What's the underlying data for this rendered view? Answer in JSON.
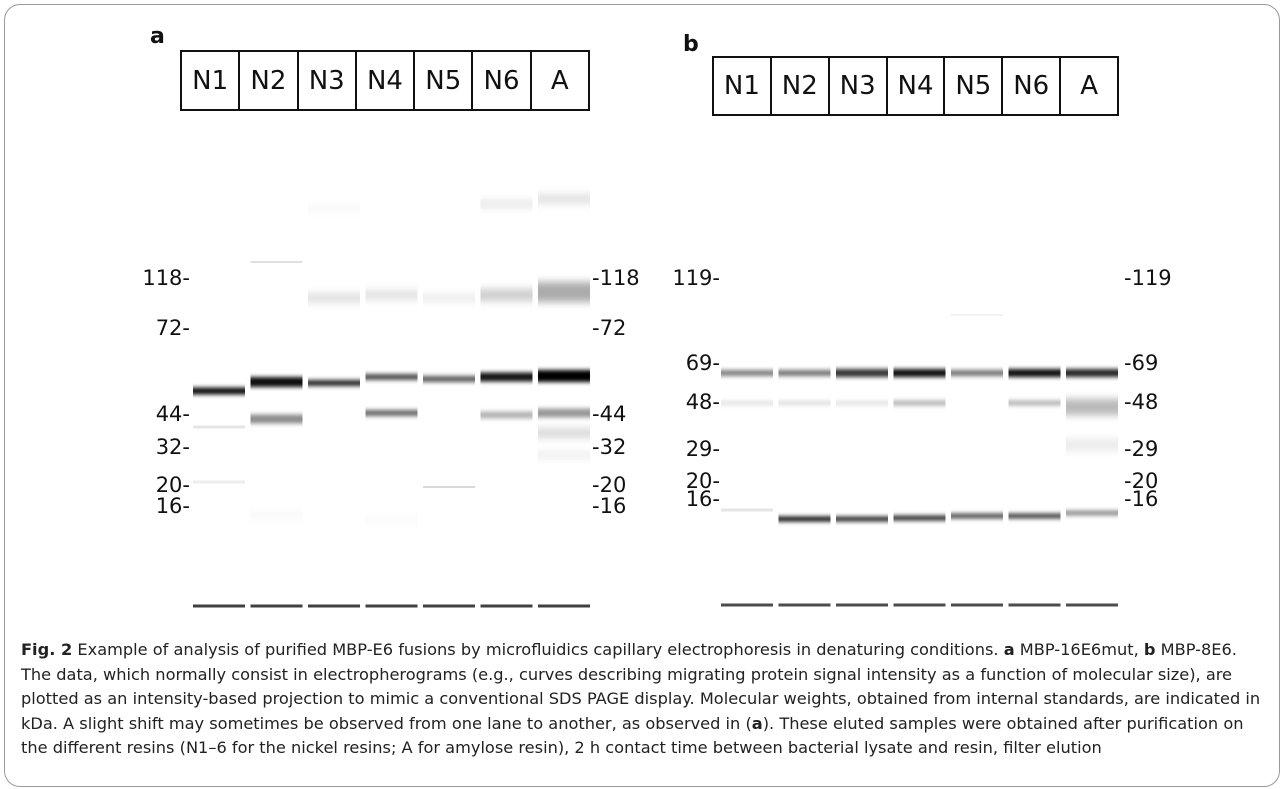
{
  "panels": [
    {
      "letter": "a",
      "lanes": [
        "N1",
        "N2",
        "N3",
        "N4",
        "N5",
        "N6",
        "A"
      ],
      "mw_left": [
        "118-",
        "72-",
        "44-",
        "32-",
        "20-",
        "16-"
      ],
      "mw_right": [
        "-118",
        "-72",
        "-44",
        "-32",
        "-20",
        "-16"
      ],
      "marker_kda": [
        118,
        72,
        44,
        32,
        20,
        16
      ]
    },
    {
      "letter": "b",
      "lanes": [
        "N1",
        "N2",
        "N3",
        "N4",
        "N5",
        "N6",
        "A"
      ],
      "mw_left": [
        "119-",
        "69-",
        "48-",
        "29-",
        "20-",
        "16-"
      ],
      "mw_right": [
        "-119",
        "-69",
        "-48",
        "-29",
        "-20",
        "-16"
      ],
      "marker_kda": [
        119,
        69,
        48,
        29,
        20,
        16
      ]
    }
  ],
  "caption": {
    "label": "Fig. 2",
    "t1": "  Example of analysis of purified MBP-E6 fusions by microfluidics capillary electrophoresis in denaturing conditions. ",
    "a": "a",
    "t2": " MBP-16E6mut, ",
    "b": "b",
    "t3": " MBP-8E6. The data, which normally consist in electropherograms (e.g., curves describing migrating protein signal intensity as a function of molecular size), are plotted as an intensity-based projection to mimic a conventional SDS PAGE display. Molecular weights, obtained from internal standards, are indicated in kDa. A slight shift may sometimes be observed from one lane to another, as observed in (",
    "a2": "a",
    "t4": "). These eluted samples were obtained after purification on the different resins (N1–6 for the nickel resins; A for amylose resin), 2 h contact time between bacterial lysate and resin, filter elution"
  }
}
